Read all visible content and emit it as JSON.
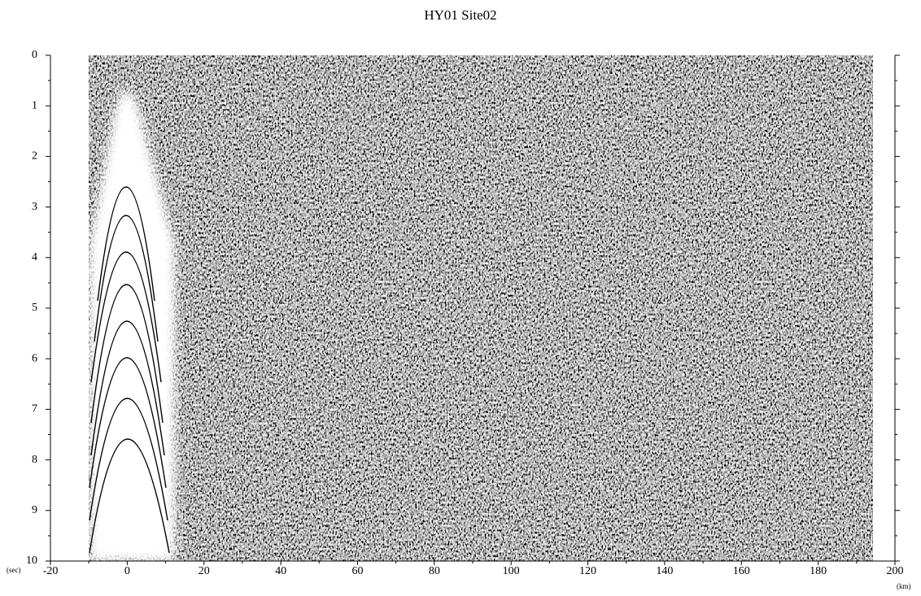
{
  "chart_data": {
    "type": "seismic",
    "title": "HY01 Site02",
    "xlabel": "(km)",
    "ylabel": "(sec)",
    "xlim": [
      -20,
      200
    ],
    "xticks": [
      -20,
      0,
      20,
      40,
      60,
      80,
      100,
      120,
      140,
      160,
      180,
      200
    ],
    "ylim": [
      0,
      10
    ],
    "yticks": [
      0,
      1,
      2,
      3,
      4,
      5,
      6,
      7,
      8,
      9,
      10
    ],
    "y_inverted": true
  }
}
